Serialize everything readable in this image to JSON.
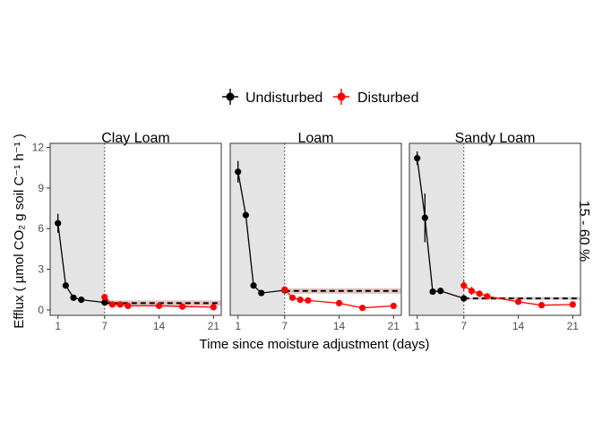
{
  "chart_data": {
    "type": "line",
    "xlabel": "Time since moisture adjustment (days)",
    "ylabel": "Efflux ( µmol CO₂ g soil C⁻¹ h⁻¹ )",
    "strip_right": "15 - 60 %",
    "x_ticks": [
      "1",
      "7",
      "14",
      "21"
    ],
    "y_ticks": [
      "0",
      "3",
      "6",
      "9",
      "12"
    ],
    "ylim": [
      -0.4,
      12.3
    ],
    "xlim": [
      0,
      22
    ],
    "legend": {
      "position": "top",
      "items": [
        {
          "label": "Undisturbed",
          "color": "#000000"
        },
        {
          "label": "Disturbed",
          "color": "#ff0000"
        }
      ]
    },
    "panels": [
      {
        "title": "Clay Loam",
        "shade_x": [
          0,
          7
        ],
        "vline_x": 7,
        "ref_line": {
          "y": 0.5,
          "band": [
            0.3,
            0.7
          ]
        },
        "series": [
          {
            "name": "Undisturbed",
            "color": "#000000",
            "points": [
              [
                1,
                6.4,
                0.7
              ],
              [
                2,
                1.8,
                0.15
              ],
              [
                3,
                0.9,
                0.1
              ],
              [
                4,
                0.75,
                0.1
              ],
              [
                7,
                0.55,
                0.1
              ]
            ]
          },
          {
            "name": "Disturbed",
            "color": "#ff0000",
            "points": [
              [
                7,
                0.95,
                0.15
              ],
              [
                8,
                0.4,
                0.08
              ],
              [
                9,
                0.4,
                0.08
              ],
              [
                10,
                0.3,
                0.08
              ],
              [
                14,
                0.3,
                0.08
              ],
              [
                17,
                0.25,
                0.06
              ],
              [
                21,
                0.2,
                0.06
              ]
            ]
          }
        ]
      },
      {
        "title": "Loam",
        "shade_x": [
          0,
          7
        ],
        "vline_x": 7,
        "ref_line": {
          "y": 1.4,
          "band": [
            1.2,
            1.6
          ]
        },
        "series": [
          {
            "name": "Undisturbed",
            "color": "#000000",
            "points": [
              [
                1,
                10.2,
                0.8
              ],
              [
                2,
                7.0,
                0.2
              ],
              [
                3,
                1.8,
                0.15
              ],
              [
                4,
                1.25,
                0.1
              ],
              [
                7,
                1.45,
                0.15
              ]
            ]
          },
          {
            "name": "Disturbed",
            "color": "#ff0000",
            "points": [
              [
                7,
                1.5,
                0.15
              ],
              [
                8,
                0.9,
                0.1
              ],
              [
                9,
                0.75,
                0.1
              ],
              [
                10,
                0.7,
                0.1
              ],
              [
                14,
                0.5,
                0.08
              ],
              [
                17,
                0.15,
                0.06
              ],
              [
                21,
                0.3,
                0.06
              ]
            ]
          }
        ]
      },
      {
        "title": "Sandy Loam",
        "shade_x": [
          0,
          7
        ],
        "vline_x": 7,
        "ref_line": {
          "y": 0.85,
          "band": [
            0.75,
            0.95
          ]
        },
        "series": [
          {
            "name": "Undisturbed",
            "color": "#000000",
            "points": [
              [
                1,
                11.2,
                0.5
              ],
              [
                2,
                6.8,
                1.8
              ],
              [
                3,
                1.35,
                0.1
              ],
              [
                4,
                1.4,
                0.1
              ],
              [
                7,
                0.85,
                0.1
              ]
            ]
          },
          {
            "name": "Disturbed",
            "color": "#ff0000",
            "points": [
              [
                7,
                1.8,
                0.35
              ],
              [
                8,
                1.4,
                0.3
              ],
              [
                9,
                1.2,
                0.2
              ],
              [
                10,
                1.0,
                0.15
              ],
              [
                14,
                0.6,
                0.12
              ],
              [
                17,
                0.35,
                0.08
              ],
              [
                21,
                0.4,
                0.08
              ]
            ]
          }
        ]
      }
    ]
  }
}
